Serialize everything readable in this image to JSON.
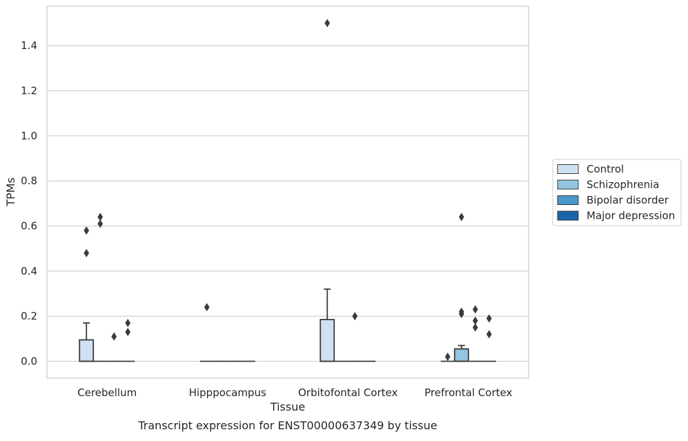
{
  "chart_data": {
    "type": "boxplot",
    "title": "",
    "caption": "Transcript expression for ENST00000637349 by tissue",
    "xlabel": "Tissue",
    "ylabel": "TPMs",
    "ylim": [
      -0.075,
      1.575
    ],
    "yticks": [
      0.0,
      0.2,
      0.4,
      0.6,
      0.8,
      1.0,
      1.2,
      1.4
    ],
    "ytick_labels": [
      "0.0",
      "0.2",
      "0.4",
      "0.6",
      "0.8",
      "1.0",
      "1.2",
      "1.4"
    ],
    "grid": "horizontal",
    "legend_position": "center-right, outside plot",
    "categories": [
      "Cerebellum",
      "Hipppocampus",
      "Orbitofontal Cortex",
      "Prefrontal Cortex"
    ],
    "series": [
      {
        "name": "Control",
        "color": "#d0e1f2",
        "boxes": [
          {
            "q1": 0.0,
            "median": 0.0,
            "q3": 0.095,
            "whisker_low": 0.0,
            "whisker_high": 0.17,
            "outliers": [
              0.48,
              0.58
            ]
          },
          {
            "q1": 0.0,
            "median": 0.0,
            "q3": 0.0,
            "whisker_low": 0.0,
            "whisker_high": 0.0,
            "outliers": [
              0.24
            ]
          },
          {
            "q1": 0.0,
            "median": 0.0,
            "q3": 0.185,
            "whisker_low": 0.0,
            "whisker_high": 0.32,
            "outliers": [
              1.5
            ]
          },
          {
            "q1": 0.0,
            "median": 0.0,
            "q3": 0.0,
            "whisker_low": 0.0,
            "whisker_high": 0.0,
            "outliers": [
              0.02
            ]
          }
        ]
      },
      {
        "name": "Schizophrenia",
        "color": "#94c4df",
        "boxes": [
          {
            "q1": 0.0,
            "median": 0.0,
            "q3": 0.0,
            "whisker_low": 0.0,
            "whisker_high": 0.0,
            "outliers": [
              0.61,
              0.64
            ]
          },
          {
            "q1": 0.0,
            "median": 0.0,
            "q3": 0.0,
            "whisker_low": 0.0,
            "whisker_high": 0.0,
            "outliers": []
          },
          {
            "q1": 0.0,
            "median": 0.0,
            "q3": 0.0,
            "whisker_low": 0.0,
            "whisker_high": 0.0,
            "outliers": []
          },
          {
            "q1": 0.0,
            "median": 0.0,
            "q3": 0.055,
            "whisker_low": 0.0,
            "whisker_high": 0.07,
            "outliers": [
              0.21,
              0.22,
              0.64
            ]
          }
        ]
      },
      {
        "name": "Bipolar disorder",
        "color": "#4a98c9",
        "boxes": [
          {
            "q1": 0.0,
            "median": 0.0,
            "q3": 0.0,
            "whisker_low": 0.0,
            "whisker_high": 0.0,
            "outliers": [
              0.11
            ]
          },
          {
            "q1": 0.0,
            "median": 0.0,
            "q3": 0.0,
            "whisker_low": 0.0,
            "whisker_high": 0.0,
            "outliers": []
          },
          {
            "q1": 0.0,
            "median": 0.0,
            "q3": 0.0,
            "whisker_low": 0.0,
            "whisker_high": 0.0,
            "outliers": [
              0.2
            ]
          },
          {
            "q1": 0.0,
            "median": 0.0,
            "q3": 0.0,
            "whisker_low": 0.0,
            "whisker_high": 0.0,
            "outliers": [
              0.15,
              0.18,
              0.23
            ]
          }
        ]
      },
      {
        "name": "Major depression",
        "color": "#1764ab",
        "boxes": [
          {
            "q1": 0.0,
            "median": 0.0,
            "q3": 0.0,
            "whisker_low": 0.0,
            "whisker_high": 0.0,
            "outliers": [
              0.13,
              0.17
            ]
          },
          {
            "q1": 0.0,
            "median": 0.0,
            "q3": 0.0,
            "whisker_low": 0.0,
            "whisker_high": 0.0,
            "outliers": []
          },
          {
            "q1": 0.0,
            "median": 0.0,
            "q3": 0.0,
            "whisker_low": 0.0,
            "whisker_high": 0.0,
            "outliers": []
          },
          {
            "q1": 0.0,
            "median": 0.0,
            "q3": 0.0,
            "whisker_low": 0.0,
            "whisker_high": 0.0,
            "outliers": [
              0.12,
              0.19
            ]
          }
        ]
      }
    ]
  }
}
